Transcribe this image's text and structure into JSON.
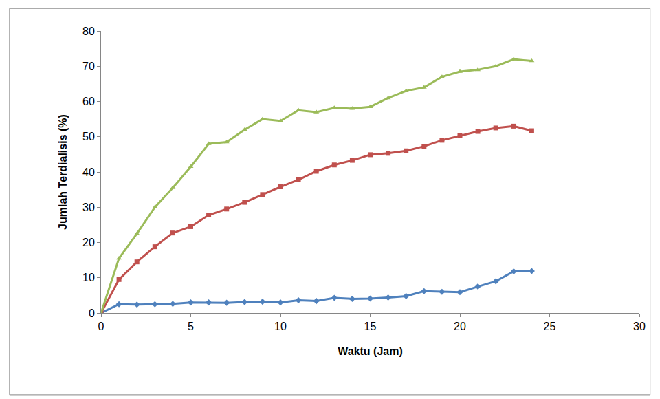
{
  "chart_data": {
    "type": "line",
    "x_label": "Waktu (Jam)",
    "y_label": "Jumlah Terdialisis (%)",
    "x": [
      0,
      1,
      2,
      3,
      4,
      5,
      6,
      7,
      8,
      9,
      10,
      11,
      12,
      13,
      14,
      15,
      16,
      17,
      18,
      19,
      20,
      21,
      22,
      23,
      24
    ],
    "series": [
      {
        "color": "#4f81bd",
        "marker": "diamond",
        "line_style": "solid",
        "values": [
          0,
          2.5,
          2.4,
          2.5,
          2.6,
          3,
          3,
          2.9,
          3.1,
          3.2,
          3,
          3.6,
          3.4,
          4.3,
          4,
          4.1,
          4.4,
          4.8,
          6.2,
          6,
          5.9,
          7.5,
          9,
          11.8,
          11.9
        ]
      },
      {
        "color": "#c0504d",
        "marker": "square",
        "line_style": "solid",
        "values": [
          0,
          9.5,
          14.5,
          18.8,
          22.7,
          24.5,
          27.8,
          29.5,
          31.4,
          33.6,
          35.8,
          37.8,
          40.2,
          42,
          43.3,
          44.9,
          45.3,
          46,
          47.3,
          49,
          50.3,
          51.5,
          52.5,
          53,
          51.7
        ]
      },
      {
        "color": "#9bbb59",
        "marker": "triangle-up",
        "line_style": "solid",
        "values": [
          0,
          15.5,
          22.5,
          30,
          35.5,
          41.5,
          48,
          48.5,
          52,
          55,
          54.5,
          57.5,
          57,
          58.2,
          58,
          58.5,
          61,
          63,
          64,
          67,
          68.5,
          69,
          70,
          72,
          71.5
        ]
      }
    ],
    "xlim": [
      0,
      30
    ],
    "xticks": [
      0,
      5,
      10,
      15,
      20,
      25,
      30
    ],
    "ylim": [
      0,
      80
    ],
    "yticks": [
      0,
      10,
      20,
      30,
      40,
      50,
      60,
      70,
      80
    ],
    "grid": false
  }
}
